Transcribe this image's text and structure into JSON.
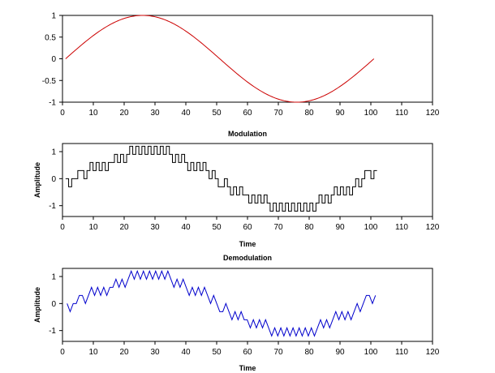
{
  "chart_data": [
    {
      "type": "line",
      "title": "",
      "xlabel": "Modulation",
      "ylabel": "",
      "xlim": [
        0,
        120
      ],
      "ylim": [
        -1,
        1
      ],
      "xticks": [
        "0",
        "10",
        "20",
        "30",
        "40",
        "50",
        "60",
        "70",
        "80",
        "90",
        "100",
        "110",
        "120"
      ],
      "yticks": [
        "1",
        "0.5",
        "0",
        "-0.5",
        "-1"
      ],
      "series": [
        {
          "color": "#cc0000",
          "function": "sin(2*pi*(x-1)/100)",
          "x_range": [
            1,
            101
          ]
        }
      ]
    },
    {
      "type": "line",
      "title": "",
      "xlabel": "Time",
      "ylabel": "Amplitude",
      "xlim": [
        0,
        120
      ],
      "ylim": [
        -1.4,
        1.3
      ],
      "xticks": [
        "0",
        "10",
        "20",
        "30",
        "40",
        "50",
        "60",
        "70",
        "80",
        "90",
        "100",
        "110",
        "120"
      ],
      "yticks": [
        "1",
        "0",
        "-1"
      ],
      "series": [
        {
          "color": "#000000",
          "style": "step",
          "x_range": [
            1,
            102
          ],
          "levels": [
            0,
            -0.3,
            0,
            0,
            0.3,
            0.3,
            0,
            0.3,
            0.6,
            0.3,
            0.6,
            0.3,
            0.6,
            0.3,
            0.6,
            0.6,
            0.9,
            0.6,
            0.9,
            0.6,
            0.9,
            1.2,
            0.9,
            1.2,
            0.9,
            1.2,
            0.9,
            1.2,
            0.9,
            1.2,
            0.9,
            1.2,
            0.9,
            1.2,
            0.9,
            0.6,
            0.9,
            0.6,
            0.9,
            0.6,
            0.3,
            0.6,
            0.3,
            0.6,
            0.3,
            0.6,
            0.3,
            0,
            0.3,
            0,
            -0.3,
            -0.3,
            0,
            -0.3,
            -0.6,
            -0.3,
            -0.6,
            -0.3,
            -0.6,
            -0.6,
            -0.9,
            -0.6,
            -0.9,
            -0.6,
            -0.9,
            -0.6,
            -0.9,
            -1.2,
            -0.9,
            -1.2,
            -0.9,
            -1.2,
            -0.9,
            -1.2,
            -0.9,
            -1.2,
            -0.9,
            -1.2,
            -0.9,
            -1.2,
            -0.9,
            -1.2,
            -0.9,
            -0.6,
            -0.9,
            -0.6,
            -0.9,
            -0.6,
            -0.3,
            -0.6,
            -0.3,
            -0.6,
            -0.3,
            -0.6,
            -0.3,
            0,
            -0.3,
            0,
            0.3,
            0.3,
            0,
            0.3
          ]
        }
      ]
    },
    {
      "type": "line",
      "title": "Demodulation",
      "xlabel": "Time",
      "ylabel": "Amplitude",
      "xlim": [
        0,
        120
      ],
      "ylim": [
        -1.4,
        1.3
      ],
      "xticks": [
        "0",
        "10",
        "20",
        "30",
        "40",
        "50",
        "60",
        "70",
        "80",
        "90",
        "100",
        "110",
        "120"
      ],
      "yticks": [
        "1",
        "0",
        "-1"
      ],
      "series": [
        {
          "color": "#0000cc",
          "style": "line",
          "x_range": [
            1,
            102
          ],
          "levels_from_series": 1
        }
      ]
    }
  ]
}
